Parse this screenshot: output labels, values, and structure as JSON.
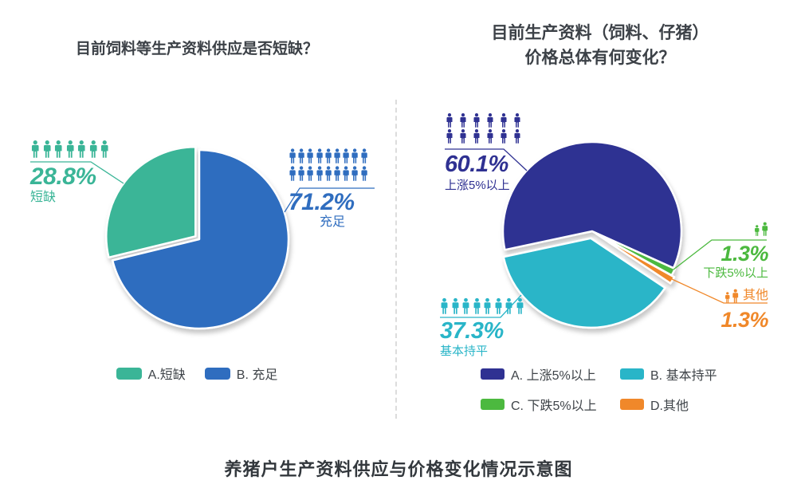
{
  "footer_title": "养猪户生产资料供应与价格变化情况示意图",
  "text_color": "#3c4147",
  "icon_glyph": "person-icon",
  "chart_data": [
    {
      "type": "pie",
      "title_lines": [
        "目前饲料等生产资料供应是否短缺？"
      ],
      "start_angle": 0,
      "legend_position": "bottom",
      "slices": [
        {
          "key": "sufficient",
          "label": "充足",
          "legend": "B. 充足",
          "value": 71.2,
          "pct": "71.2%",
          "color": "#2f6dbf",
          "icons": 18,
          "explode": 0
        },
        {
          "key": "shortage",
          "label": "短缺",
          "legend": "A.短缺",
          "value": 28.8,
          "pct": "28.8%",
          "color": "#3ab597",
          "icons": 7,
          "explode": 6
        }
      ]
    },
    {
      "type": "pie",
      "title_lines": [
        "目前生产资料（饲料、仔猪）",
        "价格总体有何变化？"
      ],
      "start_angle": 258,
      "legend_position": "bottom",
      "slices": [
        {
          "key": "up-over-5pct",
          "label": "上涨5%以上",
          "legend": "A. 上涨5%以上",
          "value": 60.1,
          "pct": "60.1%",
          "color": "#2f3192",
          "icons": 12,
          "explode": 0
        },
        {
          "key": "down-over-5pct",
          "label": "下跌5%以上",
          "legend": "C. 下跌5%以上",
          "value": 1.3,
          "pct": "1.3%",
          "color": "#4cb93f",
          "icons": 2,
          "explode": 2
        },
        {
          "key": "other",
          "label": "其他",
          "legend": "D.其他",
          "value": 1.3,
          "pct": "1.3%",
          "color": "#f0882a",
          "icons": 2,
          "explode": 6
        },
        {
          "key": "flat",
          "label": "基本持平",
          "legend": "B. 基本持平",
          "value": 37.3,
          "pct": "37.3%",
          "color": "#29b5c8",
          "icons": 8,
          "explode": 9
        }
      ]
    }
  ]
}
